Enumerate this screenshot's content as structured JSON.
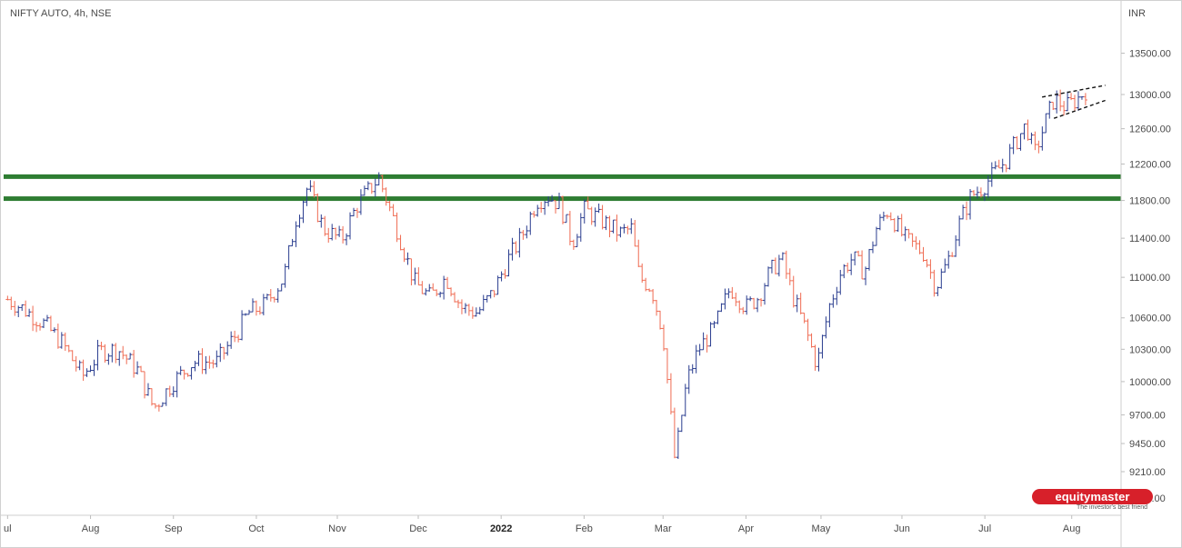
{
  "header": {
    "symbol": "NIFTY AUTO, 4h, NSE",
    "currency": "INR"
  },
  "branding": {
    "name": "equitymaster",
    "tagline": "The investor's best friend"
  },
  "colors": {
    "up": "#2a3d8f",
    "down": "#ef6b52",
    "support": "#2e7d32",
    "pattern": "#111111",
    "brand": "#d7202a"
  },
  "chart_data": {
    "type": "ohlc",
    "x_axis_labels": [
      {
        "t": 0.0,
        "label": "ul",
        "bold": false
      },
      {
        "t": 0.21,
        "label": "Aug",
        "bold": false
      },
      {
        "t": 0.42,
        "label": "Sep",
        "bold": false
      },
      {
        "t": 0.63,
        "label": "Oct",
        "bold": false
      },
      {
        "t": 0.835,
        "label": "Nov",
        "bold": false
      },
      {
        "t": 1.04,
        "label": "Dec",
        "bold": false
      },
      {
        "t": 1.25,
        "label": "2022",
        "bold": true
      },
      {
        "t": 1.46,
        "label": "Feb",
        "bold": false
      },
      {
        "t": 1.66,
        "label": "Mar",
        "bold": false
      },
      {
        "t": 1.87,
        "label": "Apr",
        "bold": false
      },
      {
        "t": 2.06,
        "label": "May",
        "bold": false
      },
      {
        "t": 2.265,
        "label": "Jun",
        "bold": false
      },
      {
        "t": 2.475,
        "label": "Jul",
        "bold": false
      },
      {
        "t": 2.695,
        "label": "Aug",
        "bold": false
      }
    ],
    "y_ticks": [
      13500,
      13000,
      12600,
      12200,
      11800,
      11400,
      11000,
      10600,
      10300,
      10000,
      9700,
      9450,
      9210,
      8990
    ],
    "y_tick_labels": [
      "13500.00",
      "13000.00",
      "12600.00",
      "12200.00",
      "11800.00",
      "11400.00",
      "11000.00",
      "10600.00",
      "10300.00",
      "10000.00",
      "9700.00",
      "9450.00",
      "9210.00",
      "8990.00"
    ],
    "y_axis_scale": "log",
    "support_levels": [
      12060,
      11820
    ],
    "path": [
      [
        0.0,
        10780
      ],
      [
        0.035,
        10700
      ],
      [
        0.09,
        10550
      ],
      [
        0.14,
        10350
      ],
      [
        0.19,
        10050
      ],
      [
        0.235,
        10280
      ],
      [
        0.28,
        10300
      ],
      [
        0.33,
        10100
      ],
      [
        0.37,
        9760
      ],
      [
        0.42,
        10000
      ],
      [
        0.47,
        10180
      ],
      [
        0.53,
        10180
      ],
      [
        0.58,
        10450
      ],
      [
        0.61,
        10650
      ],
      [
        0.65,
        10720
      ],
      [
        0.7,
        11000
      ],
      [
        0.73,
        11600
      ],
      [
        0.76,
        11950
      ],
      [
        0.8,
        11500
      ],
      [
        0.845,
        11380
      ],
      [
        0.885,
        11750
      ],
      [
        0.94,
        12050
      ],
      [
        0.99,
        11450
      ],
      [
        1.03,
        10950
      ],
      [
        1.07,
        10800
      ],
      [
        1.11,
        11000
      ],
      [
        1.15,
        10700
      ],
      [
        1.19,
        10650
      ],
      [
        1.23,
        10850
      ],
      [
        1.27,
        11200
      ],
      [
        1.3,
        11400
      ],
      [
        1.34,
        11800
      ],
      [
        1.37,
        11850
      ],
      [
        1.4,
        11750
      ],
      [
        1.43,
        11350
      ],
      [
        1.46,
        11700
      ],
      [
        1.5,
        11600
      ],
      [
        1.55,
        11450
      ],
      [
        1.58,
        11500
      ],
      [
        1.6,
        11000
      ],
      [
        1.63,
        10900
      ],
      [
        1.66,
        10450
      ],
      [
        1.69,
        9300
      ],
      [
        1.72,
        10000
      ],
      [
        1.75,
        10300
      ],
      [
        1.79,
        10500
      ],
      [
        1.83,
        10900
      ],
      [
        1.87,
        10700
      ],
      [
        1.9,
        10800
      ],
      [
        1.93,
        11050
      ],
      [
        1.96,
        11200
      ],
      [
        1.99,
        10800
      ],
      [
        2.02,
        10500
      ],
      [
        2.05,
        10150
      ],
      [
        2.08,
        10700
      ],
      [
        2.11,
        11050
      ],
      [
        2.14,
        11200
      ],
      [
        2.17,
        11050
      ],
      [
        2.2,
        11500
      ],
      [
        2.23,
        11700
      ],
      [
        2.27,
        11400
      ],
      [
        2.32,
        11250
      ],
      [
        2.35,
        10900
      ],
      [
        2.38,
        11150
      ],
      [
        2.41,
        11550
      ],
      [
        2.44,
        11850
      ],
      [
        2.47,
        11950
      ],
      [
        2.5,
        12100
      ],
      [
        2.53,
        12250
      ],
      [
        2.56,
        12500
      ],
      [
        2.58,
        12650
      ],
      [
        2.6,
        12300
      ],
      [
        2.63,
        12700
      ],
      [
        2.65,
        12950
      ],
      [
        2.68,
        12850
      ],
      [
        2.71,
        12950
      ],
      [
        2.73,
        13050
      ]
    ],
    "pattern_lines": [
      {
        "from": [
          2.62,
          12970
        ],
        "to": [
          2.78,
          13110
        ]
      },
      {
        "from": [
          2.65,
          12720
        ],
        "to": [
          2.78,
          12930
        ]
      }
    ],
    "x_range": [
      -0.01,
      2.82
    ],
    "y_range": [
      8900,
      13820
    ]
  }
}
